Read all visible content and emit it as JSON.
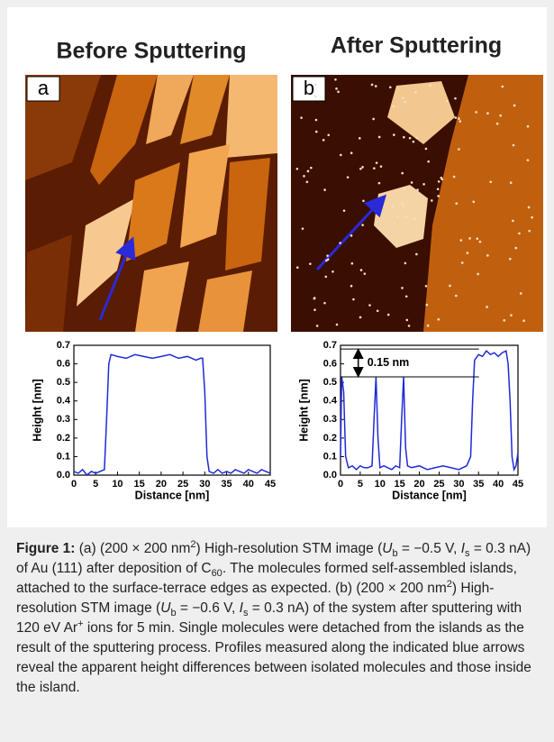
{
  "figure": {
    "panels": [
      {
        "title": "Before Sputtering",
        "label": "a"
      },
      {
        "title": "After Sputtering",
        "label": "b"
      }
    ]
  },
  "chart_data": [
    {
      "type": "line",
      "xlabel": "Distance [nm]",
      "ylabel": "Height [nm]",
      "x": [
        0,
        1,
        2,
        3,
        4,
        5,
        6,
        7,
        7.5,
        8,
        8.5,
        10,
        12,
        14,
        16,
        18,
        20,
        22,
        24,
        26,
        28,
        29,
        29.5,
        30,
        30.5,
        31,
        32,
        33,
        34,
        35,
        36,
        37,
        38,
        39,
        40,
        41,
        42,
        43,
        44,
        45
      ],
      "series": [
        {
          "color": "#1f2ad6",
          "values": [
            0.02,
            0.01,
            0.03,
            0.0,
            0.02,
            0.01,
            0.02,
            0.03,
            0.3,
            0.6,
            0.65,
            0.64,
            0.63,
            0.65,
            0.64,
            0.63,
            0.64,
            0.65,
            0.63,
            0.64,
            0.62,
            0.63,
            0.63,
            0.45,
            0.1,
            0.02,
            0.01,
            0.03,
            0.01,
            0.02,
            0.01,
            0.03,
            0.02,
            0.01,
            0.03,
            0.02,
            0.01,
            0.03,
            0.02,
            0.01
          ]
        }
      ],
      "xlim": [
        0,
        45
      ],
      "ylim": [
        0,
        0.7
      ],
      "xticks": [
        0,
        5,
        10,
        15,
        20,
        25,
        30,
        35,
        40,
        45
      ],
      "yticks": [
        {
          "value": 0,
          "label": "0.0"
        },
        0.1,
        0.2,
        0.3,
        0.4,
        0.5,
        0.6,
        0.7
      ]
    },
    {
      "type": "line",
      "xlabel": "Distance [nm]",
      "ylabel": "Height [nm]",
      "x": [
        0,
        0.3,
        0.8,
        1.3,
        2,
        3,
        4,
        5,
        6,
        7,
        8,
        8.5,
        9,
        9.5,
        10,
        11,
        12,
        13,
        14,
        15,
        15.5,
        16,
        16.5,
        17,
        18,
        20,
        22,
        24,
        26,
        28,
        30,
        32,
        33,
        33.5,
        34,
        35,
        36,
        37,
        38,
        39,
        40,
        41,
        42,
        42.5,
        43,
        43.5,
        44,
        44.5,
        45
      ],
      "series": [
        {
          "color": "#1f2ad6",
          "values": [
            0.1,
            0.53,
            0.45,
            0.1,
            0.04,
            0.05,
            0.03,
            0.05,
            0.04,
            0.04,
            0.05,
            0.3,
            0.53,
            0.2,
            0.04,
            0.05,
            0.04,
            0.03,
            0.05,
            0.04,
            0.3,
            0.53,
            0.15,
            0.05,
            0.04,
            0.05,
            0.03,
            0.04,
            0.05,
            0.04,
            0.03,
            0.05,
            0.1,
            0.4,
            0.62,
            0.65,
            0.64,
            0.67,
            0.65,
            0.66,
            0.64,
            0.66,
            0.67,
            0.6,
            0.4,
            0.1,
            0.03,
            0.05,
            0.12
          ]
        }
      ],
      "xlim": [
        0,
        45
      ],
      "ylim": [
        0,
        0.7
      ],
      "xticks": [
        0,
        5,
        10,
        15,
        20,
        25,
        30,
        35,
        40,
        45
      ],
      "yticks": [
        {
          "value": 0,
          "label": "0.0"
        },
        0.1,
        0.2,
        0.3,
        0.4,
        0.5,
        0.6,
        0.7
      ],
      "hlines": [
        0.68,
        0.53
      ],
      "annotation": "0.15 nm"
    }
  ],
  "caption": {
    "label": "Figure 1:",
    "runs": [
      {
        "text": " (a) (200 × 200 nm",
        "style": "normal"
      },
      {
        "text": "2",
        "style": "sup"
      },
      {
        "text": ") High-resolution STM image (",
        "style": "normal"
      },
      {
        "text": "U",
        "style": "italic"
      },
      {
        "text": "b",
        "style": "sub"
      },
      {
        "text": " = −0.5 V, ",
        "style": "normal"
      },
      {
        "text": "I",
        "style": "italic"
      },
      {
        "text": "s",
        "style": "sub"
      },
      {
        "text": " = 0.3 nA) of Au (111) after deposition of C",
        "style": "normal"
      },
      {
        "text": "60",
        "style": "sub"
      },
      {
        "text": ". The molecules formed self-assembled islands, attached to the surface-terrace edges as expected. (b) (200 × 200 nm",
        "style": "normal"
      },
      {
        "text": "2",
        "style": "sup"
      },
      {
        "text": ") High-resolution STM image (",
        "style": "normal"
      },
      {
        "text": "U",
        "style": "italic"
      },
      {
        "text": "b",
        "style": "sub"
      },
      {
        "text": " = −0.6 V, ",
        "style": "normal"
      },
      {
        "text": "I",
        "style": "italic"
      },
      {
        "text": "s",
        "style": "sub"
      },
      {
        "text": " = 0.3 nA) of the system after sputtering with 120 eV Ar",
        "style": "normal"
      },
      {
        "text": "+",
        "style": "sup"
      },
      {
        "text": " ions for 5 min. Single molecules were detached from the islands as the result of the sputtering process. Profiles measured along the indicated blue arrows reveal the apparent height differences between isolated molecules and those inside the island.",
        "style": "normal"
      }
    ]
  }
}
